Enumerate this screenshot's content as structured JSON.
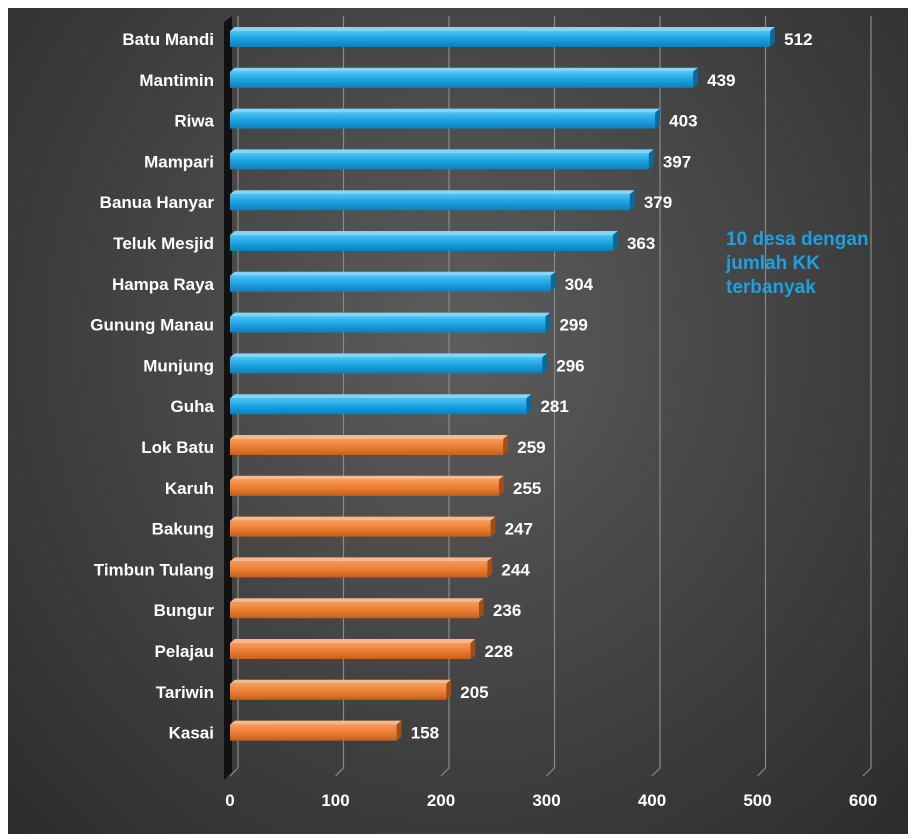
{
  "chart_data": {
    "type": "bar",
    "orientation": "horizontal",
    "categories": [
      "Batu Mandi",
      "Mantimin",
      "Riwa",
      "Mampari",
      "Banua Hanyar",
      "Teluk Mesjid",
      "Hampa Raya",
      "Gunung Manau",
      "Munjung",
      "Guha",
      "Lok Batu",
      "Karuh",
      "Bakung",
      "Timbun Tulang",
      "Bungur",
      "Pelajau",
      "Tariwin",
      "Kasai"
    ],
    "values": [
      512,
      439,
      403,
      397,
      379,
      363,
      304,
      299,
      296,
      281,
      259,
      255,
      247,
      244,
      236,
      228,
      205,
      158
    ],
    "highlight_count": 10,
    "colors": {
      "highlight": "#1ba1e2",
      "other": "#ed7d31"
    },
    "xlim": [
      0,
      600
    ],
    "xticks": [
      0,
      100,
      200,
      300,
      400,
      500,
      600
    ],
    "grid": true,
    "annotation": "10 desa dengan\njumlah KK\nterbanyak"
  }
}
